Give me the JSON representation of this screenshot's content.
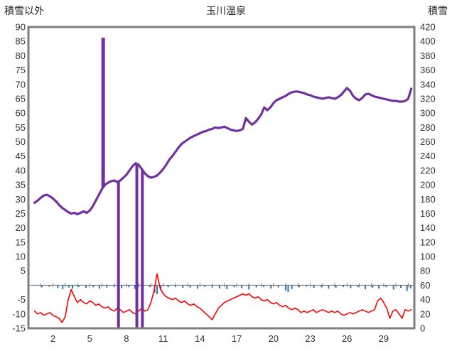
{
  "header": {
    "left_axis_title": "積雪以外",
    "chart_title": "玉川温泉",
    "right_axis_title": "積雪"
  },
  "chart_data": {
    "type": "line",
    "title": "玉川温泉",
    "x_axis": {
      "min": 0,
      "max": 31.5,
      "tick_labels": [
        2,
        5,
        8,
        11,
        14,
        17,
        20,
        23,
        26,
        29
      ]
    },
    "left_axis": {
      "label": "積雪以外",
      "min": -15,
      "max": 90,
      "step": 5,
      "omit_zero_label": true
    },
    "right_axis": {
      "label": "積雪",
      "min": 0,
      "max": 420,
      "step": 20
    },
    "grid": {
      "border_color": "#7f7f7f",
      "zero_line": true,
      "zero_line_color": "#7f7f7f"
    },
    "series": [
      {
        "name": "red-line-left-axis",
        "axis": "left",
        "color": "#ff0000",
        "width": 1.6,
        "x0": 0.5,
        "dx": 0.25,
        "values": [
          -9,
          -10,
          -9.5,
          -10.5,
          -10,
          -9.5,
          -10.5,
          -11,
          -11.5,
          -13,
          -11,
          -5,
          -1.5,
          -4,
          -6,
          -5,
          -6,
          -6.5,
          -5.5,
          -6,
          -7,
          -6.5,
          -7.5,
          -8,
          -7.5,
          -8.5,
          -9,
          -8,
          -8.5,
          -9.5,
          -9,
          -8.5,
          -9.5,
          -10,
          -9,
          -8,
          -9,
          -8.5,
          -6,
          -2,
          4,
          -1,
          -3,
          -4,
          -4.5,
          -5,
          -4.5,
          -5.5,
          -6,
          -5.5,
          -6.5,
          -7,
          -6.5,
          -7.5,
          -8,
          -9,
          -10,
          -11,
          -12,
          -10,
          -8,
          -7,
          -6,
          -5.5,
          -5,
          -4.5,
          -4,
          -3.5,
          -3,
          -3.5,
          -3,
          -4,
          -4.5,
          -4,
          -5,
          -5.5,
          -5,
          -6,
          -6.5,
          -6,
          -7,
          -7.5,
          -7,
          -8,
          -8.5,
          -8,
          -8.5,
          -9.5,
          -9,
          -9.5,
          -9,
          -8.5,
          -9.5,
          -9,
          -8.5,
          -9,
          -9.5,
          -9,
          -9.5,
          -9,
          -10,
          -10.5,
          -10,
          -9.5,
          -10,
          -9.5,
          -9,
          -8.5,
          -9,
          -9.5,
          -9,
          -8.5,
          -5.5,
          -4.5,
          -6,
          -8,
          -11.5,
          -9,
          -8.5,
          -10,
          -11.5,
          -8.5,
          -9,
          -8.5
        ]
      },
      {
        "name": "purple-snow-line-right-axis",
        "axis": "right",
        "color": "#7030a0",
        "width": 3.2,
        "x0": 0.5,
        "dx": 0.25,
        "values": [
          175,
          178,
          182,
          185,
          186,
          184,
          181,
          177,
          172,
          168,
          165,
          162,
          160,
          161,
          159,
          161,
          163,
          161,
          164,
          170,
          178,
          186,
          194,
          200,
          203,
          205,
          206,
          204,
          206,
          210,
          214,
          220,
          226,
          230,
          228,
          222,
          216,
          212,
          210,
          211,
          213,
          217,
          222,
          228,
          235,
          240,
          246,
          252,
          257,
          260,
          263,
          266,
          268,
          270,
          272,
          274,
          275,
          277,
          278,
          280,
          279,
          280,
          281,
          279,
          277,
          276,
          275,
          276,
          278,
          293,
          288,
          284,
          287,
          292,
          298,
          308,
          304,
          308,
          314,
          318,
          320,
          322,
          324,
          327,
          329,
          330,
          330,
          329,
          328,
          326,
          325,
          323,
          322,
          321,
          320,
          321,
          322,
          321,
          320,
          322,
          325,
          330,
          335,
          331,
          324,
          320,
          318,
          321,
          326,
          327,
          325,
          323,
          322,
          321,
          320,
          319,
          318,
          317,
          317,
          316,
          316,
          317,
          320,
          334
        ]
      }
    ],
    "spikes": [
      {
        "x": 6.1,
        "from": 197,
        "to": 405,
        "axis": "right",
        "color": "#7030a0",
        "width": 5
      },
      {
        "x": 7.35,
        "from": 205,
        "to": 0,
        "axis": "right",
        "color": "#7030a0",
        "width": 4
      },
      {
        "x": 8.85,
        "from": 230,
        "to": 0,
        "axis": "right",
        "color": "#7030a0",
        "width": 4
      },
      {
        "x": 9.3,
        "from": 221,
        "to": 0,
        "axis": "right",
        "color": "#7030a0",
        "width": 4
      }
    ],
    "bars": {
      "name": "blue-precip-bars-left-axis",
      "axis": "left",
      "color": "#2e75b6",
      "width": 2,
      "points": [
        [
          1.1,
          0.7
        ],
        [
          1.7,
          0.5
        ],
        [
          2.4,
          1.0
        ],
        [
          2.8,
          1.4
        ],
        [
          3.3,
          0.8
        ],
        [
          3.6,
          1.2
        ],
        [
          4.1,
          0.6
        ],
        [
          4.7,
          0.9
        ],
        [
          5.3,
          0.7
        ],
        [
          5.8,
          1.2
        ],
        [
          6.4,
          0.8
        ],
        [
          7.0,
          0.6
        ],
        [
          7.6,
          1.0
        ],
        [
          8.2,
          0.7
        ],
        [
          8.7,
          1.3
        ],
        [
          9.3,
          0.9
        ],
        [
          9.9,
          0.6
        ],
        [
          10.3,
          2.6
        ],
        [
          10.5,
          3.1
        ],
        [
          10.8,
          1.8
        ],
        [
          11.4,
          0.7
        ],
        [
          12.0,
          0.5
        ],
        [
          12.6,
          0.9
        ],
        [
          13.2,
          0.8
        ],
        [
          13.8,
          1.2
        ],
        [
          14.4,
          0.6
        ],
        [
          15.0,
          0.8
        ],
        [
          15.6,
          1.1
        ],
        [
          16.2,
          1.4
        ],
        [
          16.8,
          0.7
        ],
        [
          17.4,
          1.0
        ],
        [
          18.0,
          1.5
        ],
        [
          18.6,
          0.8
        ],
        [
          19.2,
          0.6
        ],
        [
          19.8,
          1.1
        ],
        [
          20.4,
          0.8
        ],
        [
          21.0,
          1.8
        ],
        [
          21.2,
          2.4
        ],
        [
          21.5,
          1.3
        ],
        [
          22.1,
          0.7
        ],
        [
          22.7,
          0.5
        ],
        [
          23.3,
          0.9
        ],
        [
          23.9,
          0.7
        ],
        [
          24.5,
          1.2
        ],
        [
          25.1,
          0.8
        ],
        [
          25.7,
          0.6
        ],
        [
          26.3,
          1.0
        ],
        [
          26.9,
          0.7
        ],
        [
          27.5,
          1.4
        ],
        [
          28.1,
          0.8
        ],
        [
          28.6,
          1.1
        ],
        [
          29.2,
          0.7
        ],
        [
          29.8,
          1.5
        ],
        [
          30.4,
          0.9
        ],
        [
          30.9,
          2.0
        ],
        [
          31.2,
          1.1
        ]
      ]
    }
  }
}
